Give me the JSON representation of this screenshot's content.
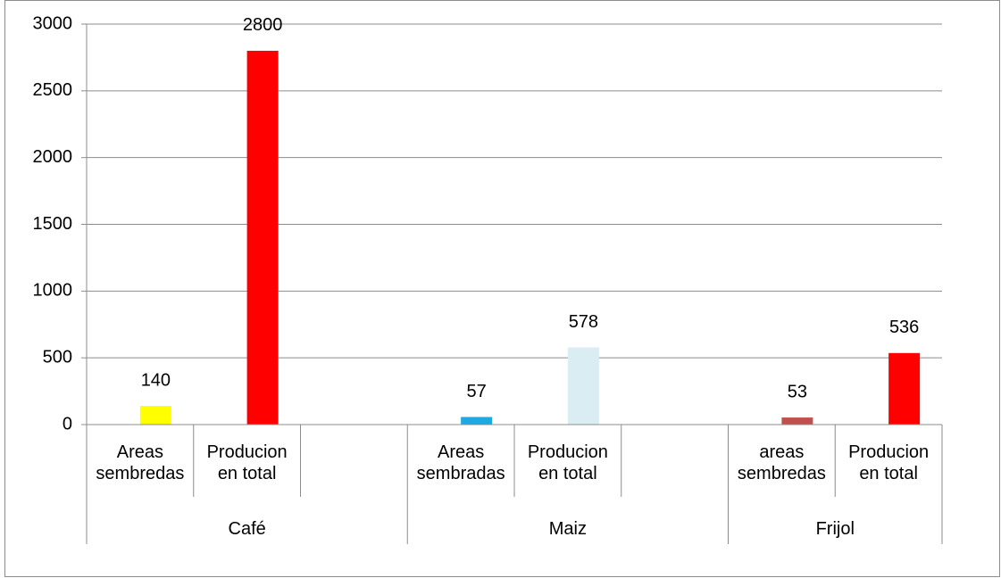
{
  "chart_data": {
    "type": "bar",
    "groups": [
      {
        "name": "Café",
        "categories": [
          "Areas sembredas",
          "Producion en total",
          null
        ]
      },
      {
        "name": "Maiz",
        "categories": [
          "Areas sembradas",
          "Producion en total",
          null
        ]
      },
      {
        "name": "Frijol",
        "categories": [
          "areas sembredas",
          "Producion en total"
        ]
      }
    ],
    "values": [
      140,
      2800,
      null,
      57,
      578,
      null,
      53,
      536
    ],
    "colors": [
      "#ffff00",
      "#ff0000",
      null,
      "#1fa9e0",
      "#daedf3",
      null,
      "#c0504d",
      "#ff0000"
    ],
    "ylim": [
      0,
      3000
    ],
    "yticks": [
      0,
      500,
      1000,
      1500,
      2000,
      2500,
      3000
    ],
    "grid": true
  }
}
